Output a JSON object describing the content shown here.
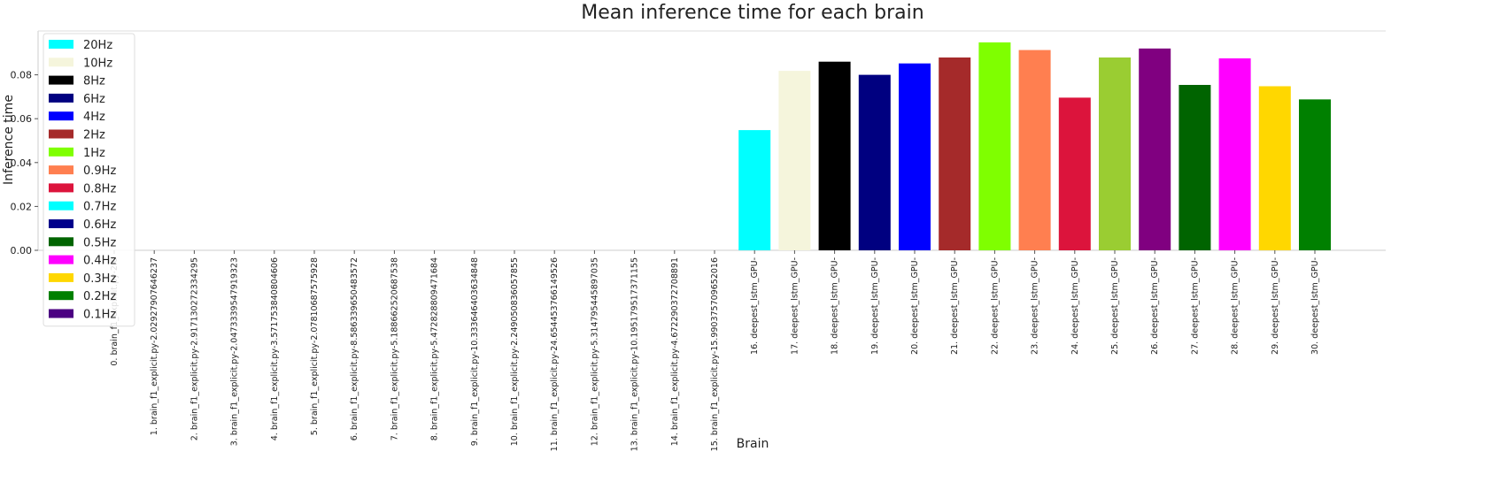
{
  "chart_data": {
    "type": "bar",
    "title": "Mean inference time for each brain",
    "xlabel": "Brain",
    "ylabel": "Inference time",
    "ylim": [
      0,
      0.1
    ],
    "yticks": [
      "0.00",
      "0.02",
      "0.04",
      "0.06",
      "0.08"
    ],
    "grid": false,
    "legend_placement": "upper-left",
    "categories": [
      "0. brain_f1_explicit.py-2.0",
      "1. brain_f1_explicit.py-2.02927907646237",
      "2. brain_f1_explicit.py-2.917130272334295",
      "3. brain_f1_explicit.py-2.047333954791932​3",
      "4. brain_f1_explicit.py-3.571753840804606",
      "5. brain_f1_explicit.py-2.078106875759​28",
      "6. brain_f1_explicit.py-8.58633965048357​2",
      "7. brain_f1_explicit.py-5.188662520687538",
      "8. brain_f1_explicit.py-5.472828809471684",
      "9. brain_f1_explicit.py-10.33364640363484​8",
      "10. brain_f1_explicit.py-2.249050836057855",
      "11. brain_f1_explicit.py-24.654453766149526",
      "12. brain_f1_explicit.py-5.314795445897035",
      "13. brain_f1_explicit.py-10.195179517371155",
      "14. brain_f1_explicit.py-4.672290372708891",
      "15. brain_f1_explicit.py-15.990375709652016",
      "16. deepest_lstm_GPU-",
      "17. deepest_lstm_GPU-",
      "18. deepest_lstm_GPU-",
      "19. deepest_lstm_GPU-",
      "20. deepest_lstm_GPU-",
      "21. deepest_lstm_GPU-",
      "22. deepest_lstm_GPU-",
      "23. deepest_lstm_GPU-",
      "24. deepest_lstm_GPU-",
      "25. deepest_lstm_GPU-",
      "26. deepest_lstm_GPU-",
      "27. deepest_lstm_GPU-",
      "28. deepest_lstm_GPU-",
      "29. deepest_lstm_GPU-",
      "30. deepest_lstm_GPU-"
    ],
    "values": [
      0,
      0,
      0,
      0,
      0,
      0,
      0,
      0,
      0,
      0,
      0,
      0,
      0,
      0,
      0,
      0,
      0.0548,
      0.0818,
      0.086,
      0.08,
      0.0852,
      0.0879,
      0.0948,
      0.0913,
      0.0696,
      0.0879,
      0.092,
      0.0754,
      0.0875,
      0.0748,
      0.0688
    ],
    "bar_colors": [
      "#00ffff",
      "#f5f5dc",
      "#000000",
      "#000080",
      "#0000ff",
      "#a52a2a",
      "#7fff00",
      "#ff7f50",
      "#dc143c",
      "#00ffff",
      "#00008b",
      "#006400",
      "#ff00ff",
      "#ffd700",
      "#008000",
      "#4b0082",
      "#00ffff",
      "#f5f5dc",
      "#000000",
      "#000080",
      "#0000ff",
      "#a52a2a",
      "#7fff00",
      "#ff7f50",
      "#dc143c",
      "#9acd32",
      "#800080",
      "#006400",
      "#ff00ff",
      "#ffd700",
      "#008000"
    ],
    "legend": [
      {
        "label": "20Hz",
        "color": "#00ffff"
      },
      {
        "label": "10Hz",
        "color": "#f5f5dc"
      },
      {
        "label": "8Hz",
        "color": "#000000"
      },
      {
        "label": "6Hz",
        "color": "#000080"
      },
      {
        "label": "4Hz",
        "color": "#0000ff"
      },
      {
        "label": "2Hz",
        "color": "#a52a2a"
      },
      {
        "label": "1Hz",
        "color": "#7fff00"
      },
      {
        "label": "0.9Hz",
        "color": "#ff7f50"
      },
      {
        "label": "0.8Hz",
        "color": "#dc143c"
      },
      {
        "label": "0.7Hz",
        "color": "#00ffff"
      },
      {
        "label": "0.6Hz",
        "color": "#00008b"
      },
      {
        "label": "0.5Hz",
        "color": "#006400"
      },
      {
        "label": "0.4Hz",
        "color": "#ff00ff"
      },
      {
        "label": "0.3Hz",
        "color": "#ffd700"
      },
      {
        "label": "0.2Hz",
        "color": "#008000"
      },
      {
        "label": "0.1Hz",
        "color": "#4b0082"
      }
    ]
  }
}
